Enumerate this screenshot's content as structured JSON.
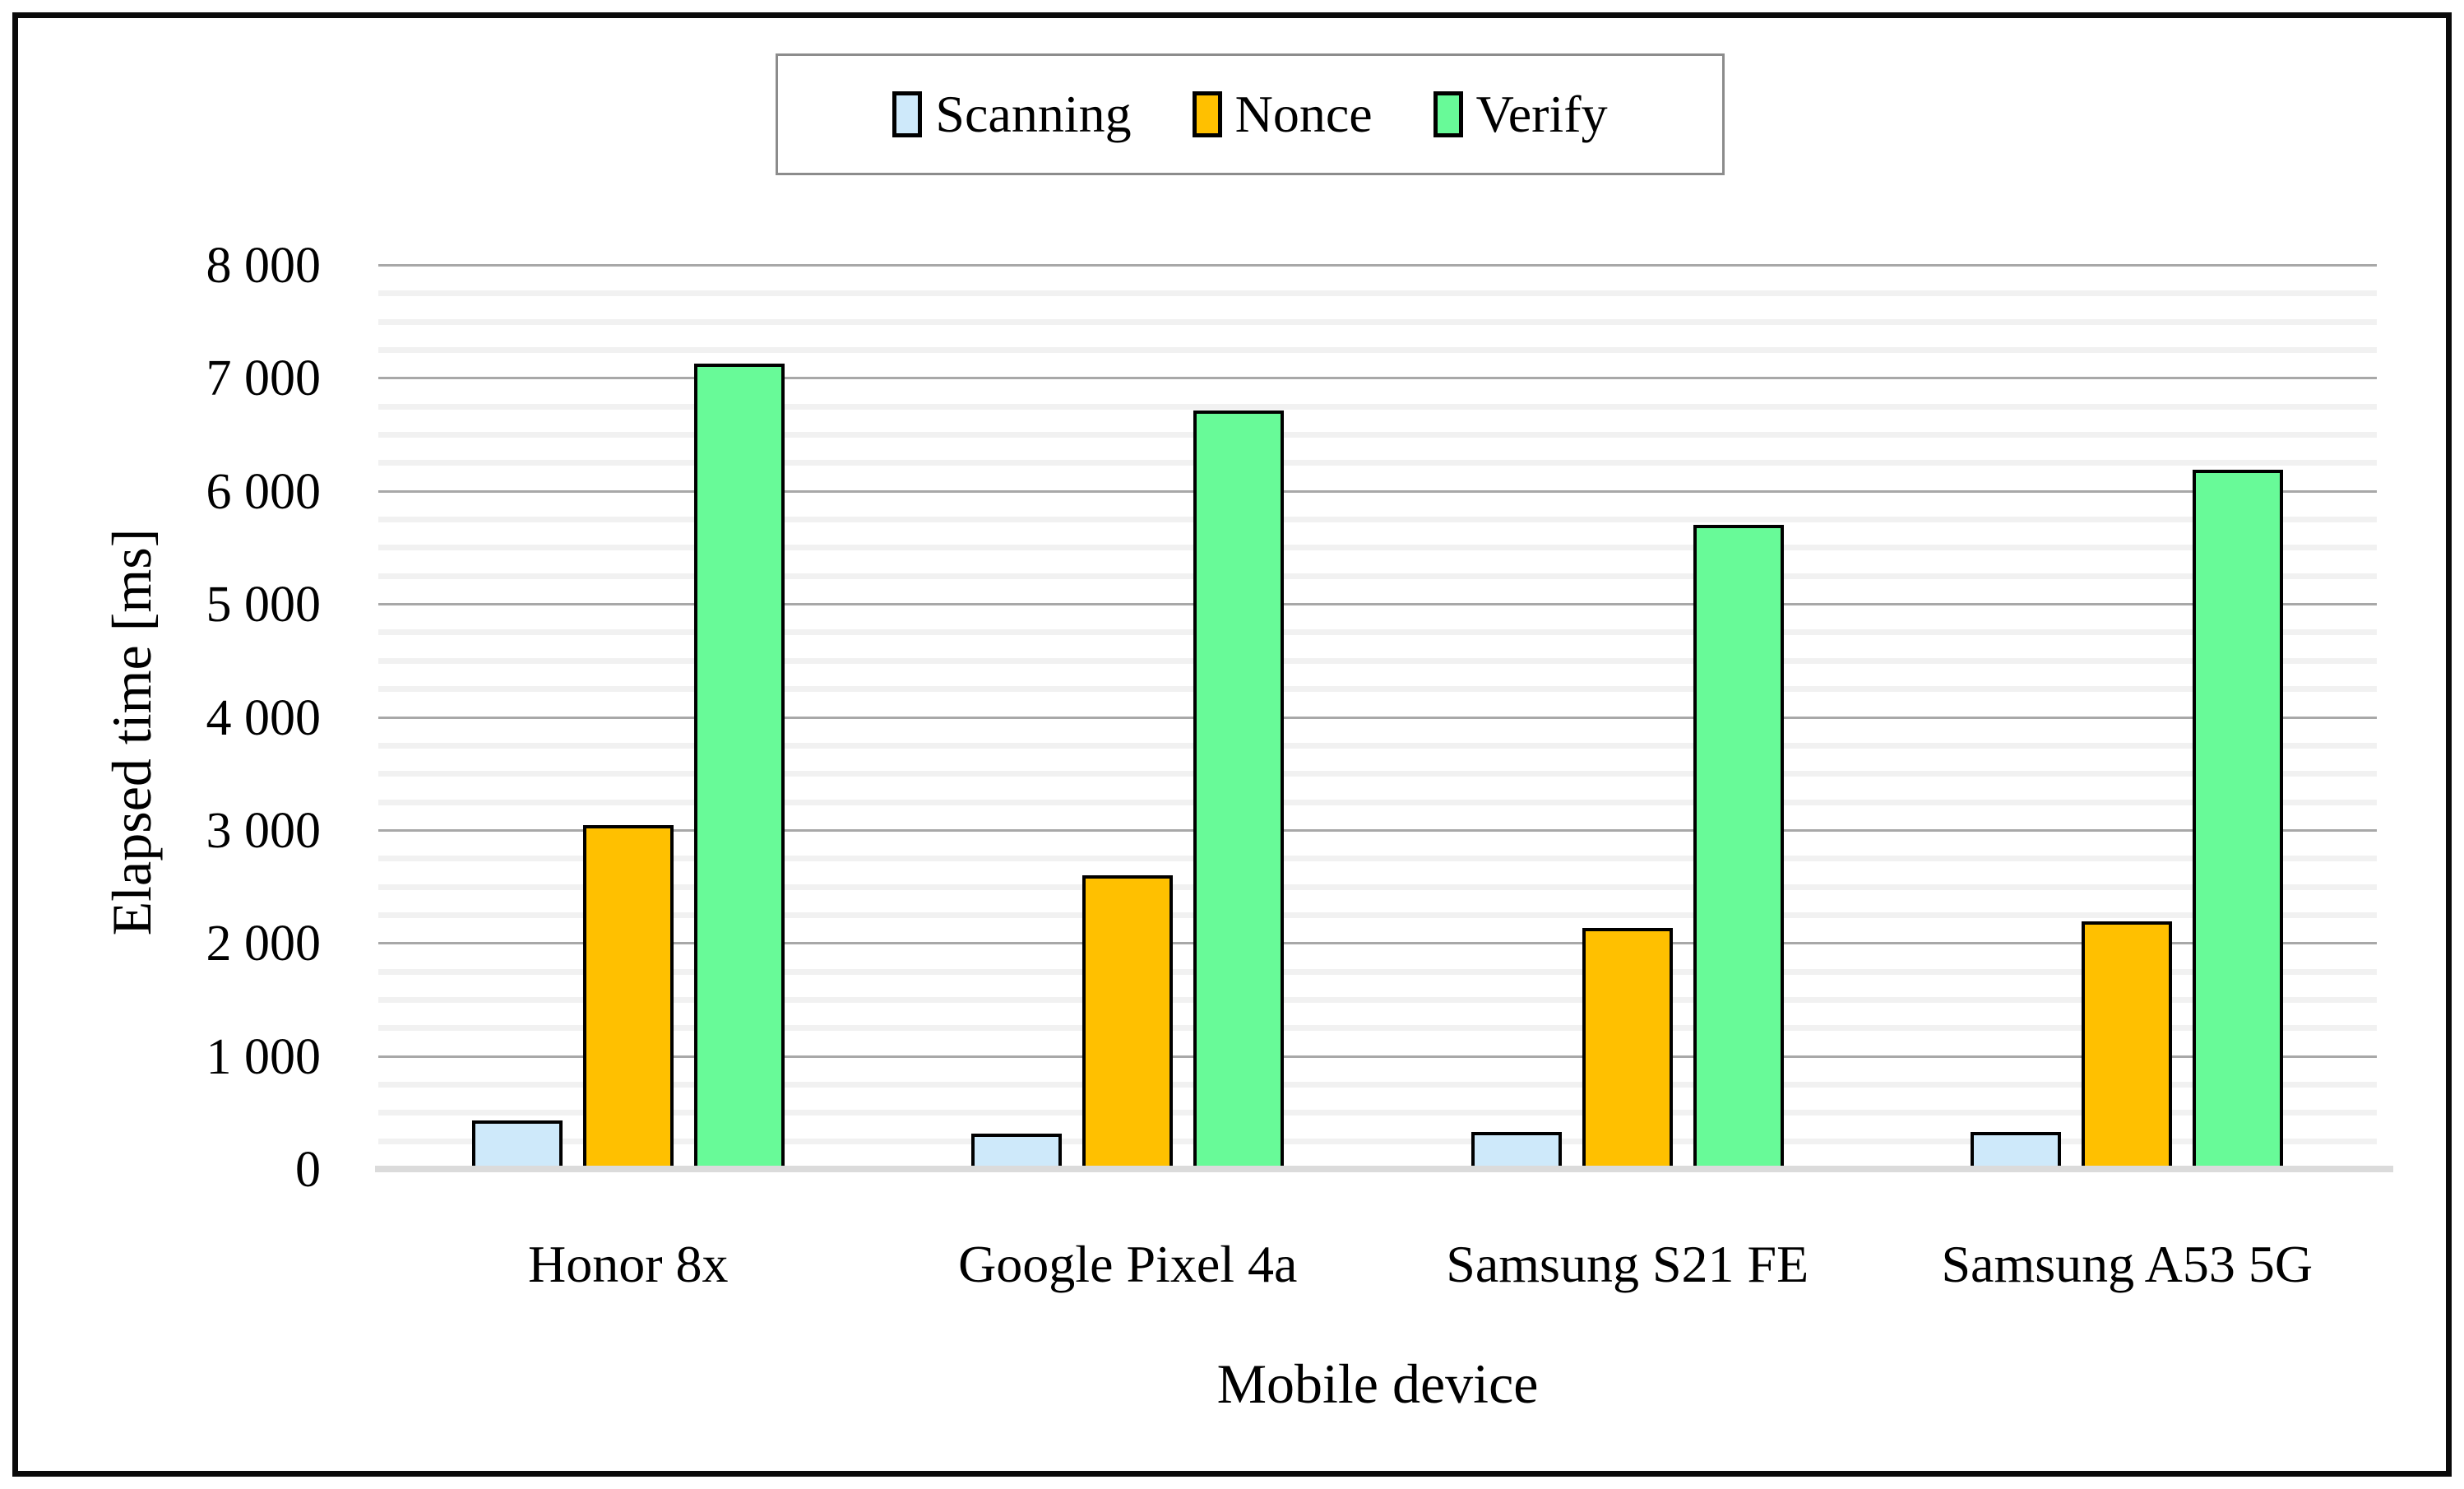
{
  "figure": {
    "background": "#ffffff",
    "frame_color": "#0a0a0a"
  },
  "legend": {
    "position": "top-center",
    "items": [
      {
        "label": "Scanning",
        "color": "#cee9fa"
      },
      {
        "label": "Nonce",
        "color": "#ffc000"
      },
      {
        "label": "Verify",
        "color": "#68fa98"
      }
    ]
  },
  "chart_data": {
    "type": "bar",
    "title": "",
    "categories": [
      "Honor 8x",
      "Google Pixel 4a",
      "Samsung S21 FE",
      "Samsung A53 5G"
    ],
    "series": [
      {
        "name": "Scanning",
        "color": "#cee9fa",
        "values": [
          430,
          310,
          330,
          330
        ]
      },
      {
        "name": "Nonce",
        "color": "#ffc000",
        "values": [
          3040,
          2600,
          2130,
          2190
        ]
      },
      {
        "name": "Verify",
        "color": "#68fa98",
        "values": [
          7130,
          6710,
          5700,
          6190
        ]
      }
    ],
    "xlabel": "Mobile device",
    "ylabel": "Elapsed time [ms]",
    "ylim": [
      0,
      8000
    ],
    "ytick_step": 1000,
    "minor_tick_step": 250,
    "ytick_labels": [
      "0",
      "1 000",
      "2 000",
      "3 000",
      "4 000",
      "5 000",
      "6 000",
      "7 000",
      "8 000"
    ],
    "grid": "major+minor",
    "bar_edge_color": "#000000",
    "grid_major_color": "#a8a8a8",
    "grid_minor_color": "#f1f1f1",
    "axis_line_color": "#dbdbdb",
    "legend_position": "top-center"
  }
}
